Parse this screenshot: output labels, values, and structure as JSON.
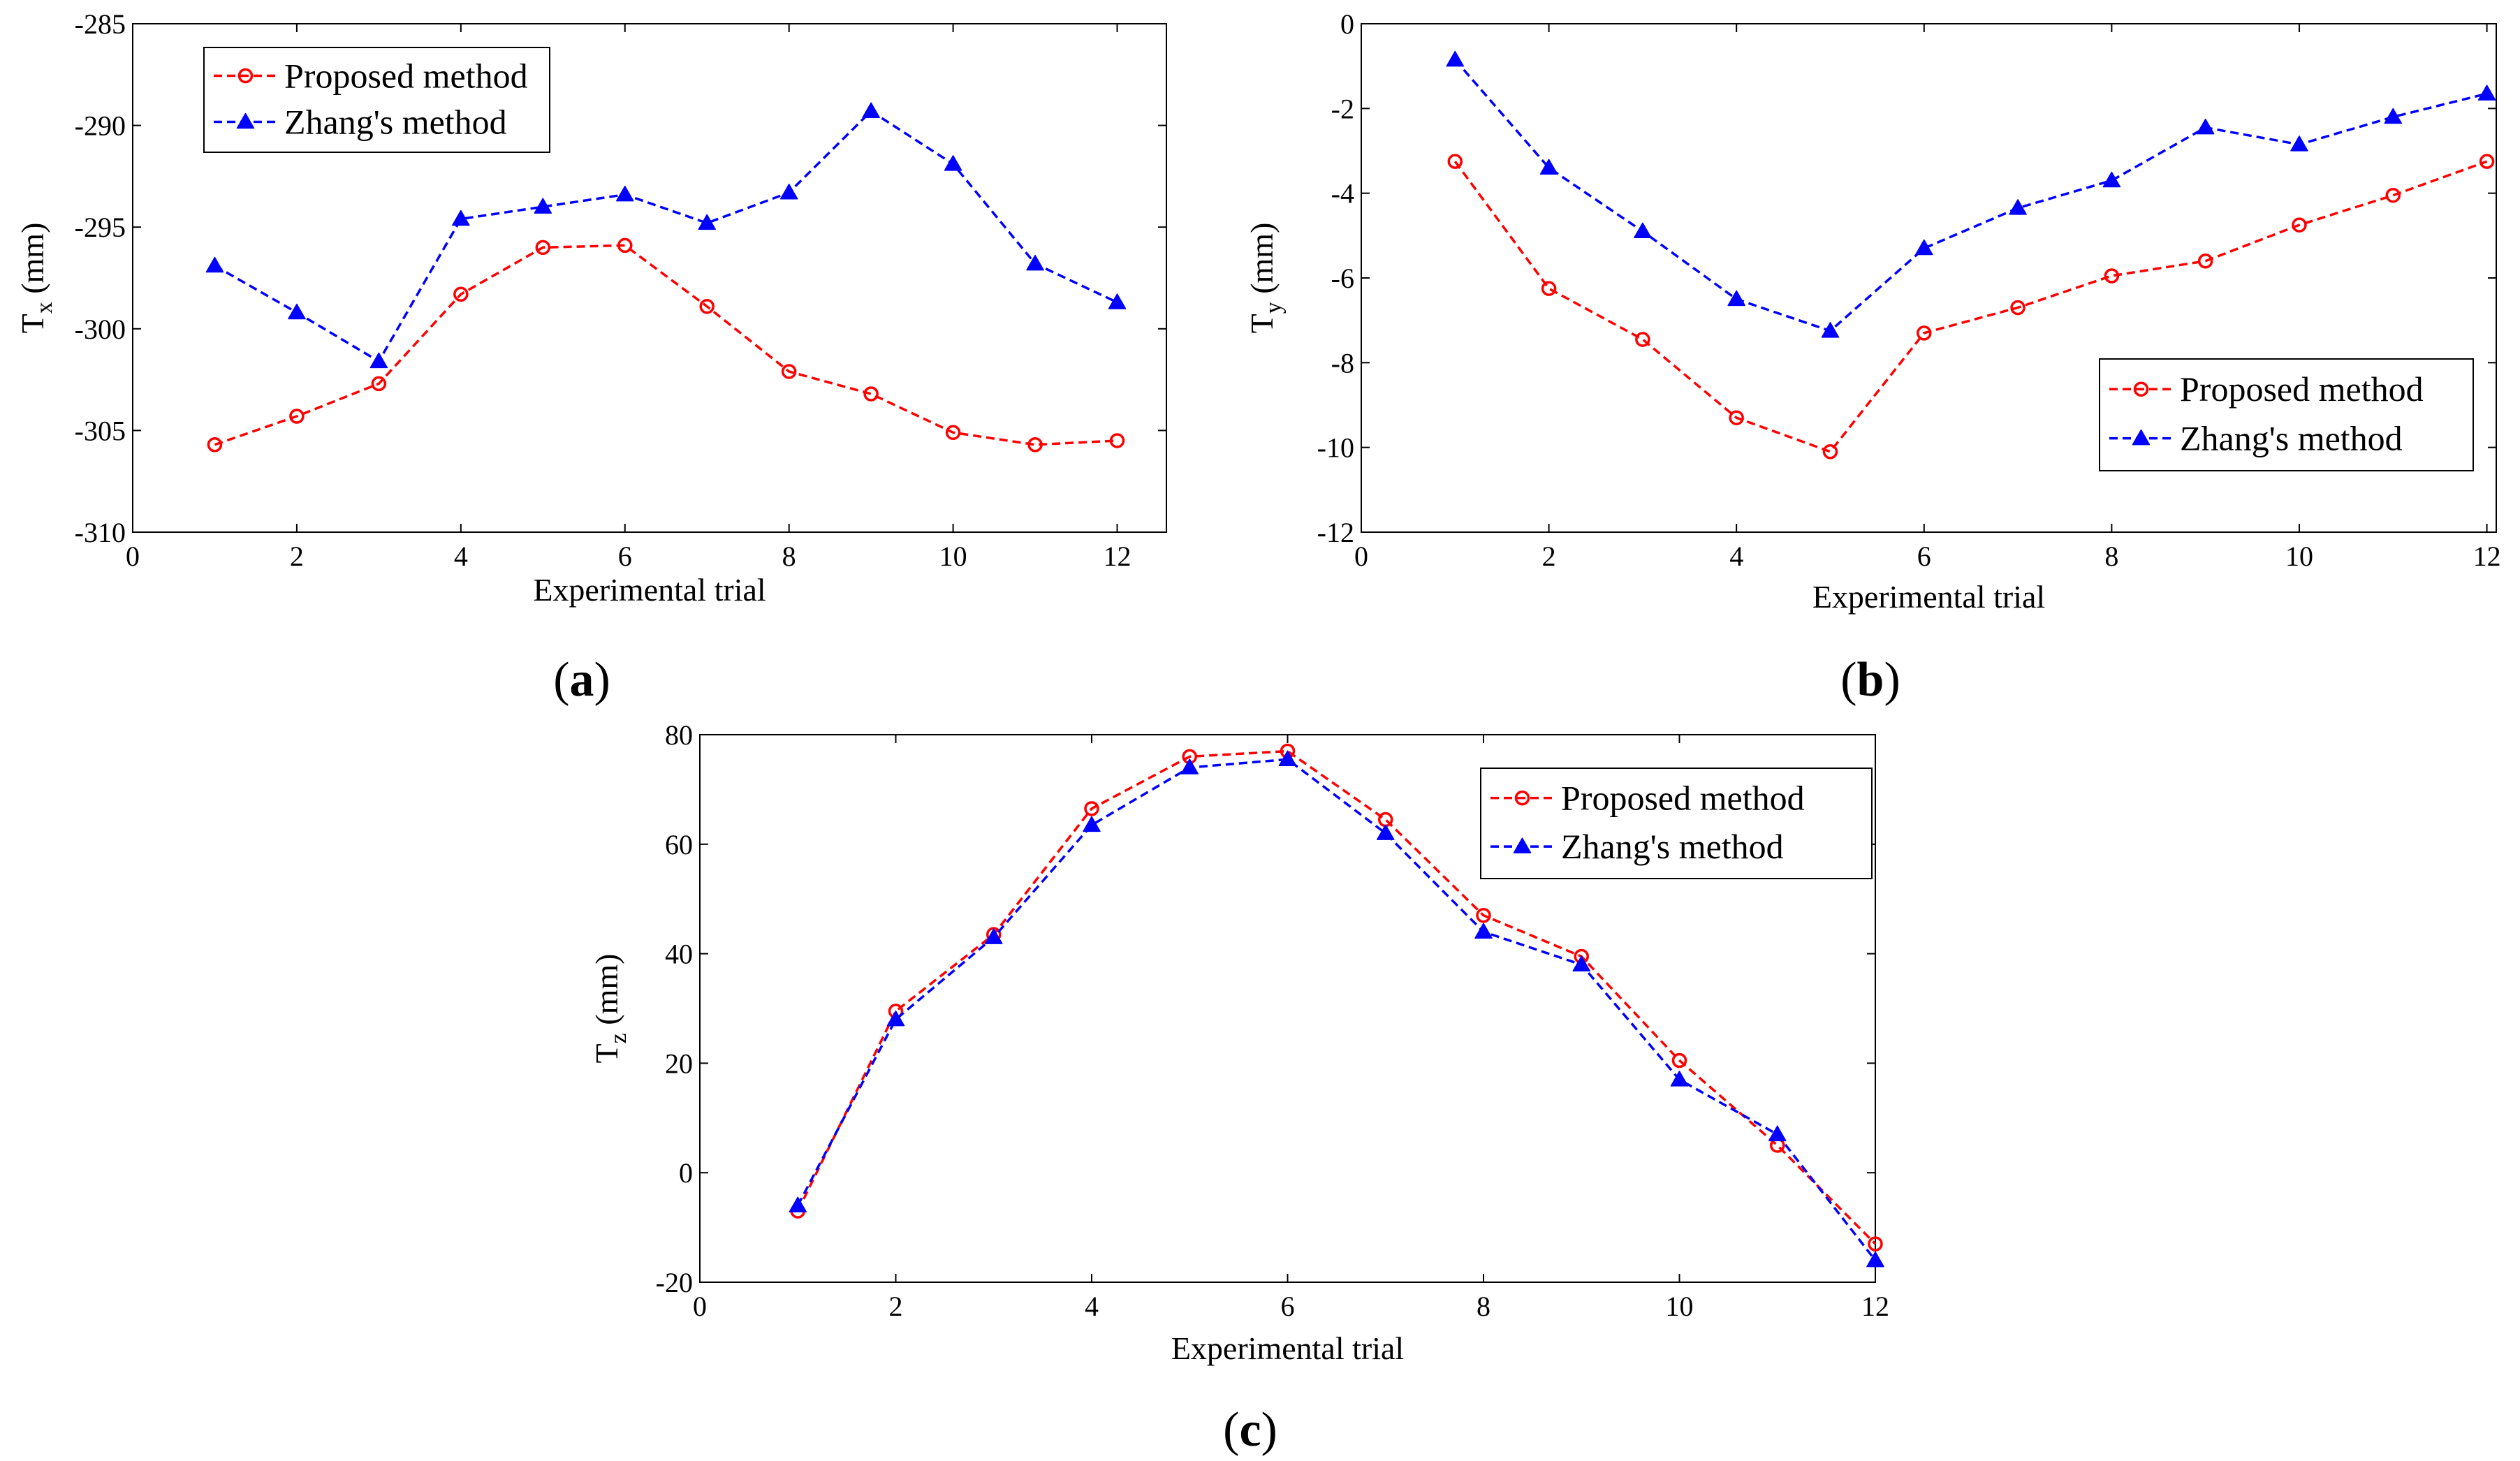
{
  "figure": {
    "panels": [
      "a",
      "b",
      "c"
    ]
  },
  "chart_data": [
    {
      "panel": "a",
      "type": "line",
      "caption_open": "(",
      "caption_letter": "a",
      "caption_close": ")",
      "xlabel": "Experimental trial",
      "ylabel_main": "T",
      "ylabel_sub": "x",
      "ylabel_unit": " (mm)",
      "xlim": [
        0,
        12.6
      ],
      "ylim": [
        -310,
        -285
      ],
      "xticks": [
        0,
        2,
        4,
        6,
        8,
        10,
        12
      ],
      "yticks": [
        -310,
        -305,
        -300,
        -295,
        -290,
        -285
      ],
      "x": [
        1,
        2,
        3,
        4,
        5,
        6,
        7,
        8,
        9,
        10,
        11,
        12
      ],
      "legend_position": "top-left",
      "series": [
        {
          "name": "Proposed method",
          "color": "#ff0000",
          "marker": "circle",
          "values": [
            -305.7,
            -304.3,
            -302.7,
            -298.3,
            -296.0,
            -295.9,
            -298.9,
            -302.1,
            -303.2,
            -305.1,
            -305.7,
            -305.5
          ]
        },
        {
          "name": "Zhang's method",
          "color": "#0000ff",
          "marker": "triangle",
          "values": [
            -296.9,
            -299.2,
            -301.6,
            -294.6,
            -294.0,
            -293.4,
            -294.8,
            -293.3,
            -289.3,
            -291.9,
            -296.8,
            -298.7
          ]
        }
      ]
    },
    {
      "panel": "b",
      "type": "line",
      "caption_open": "(",
      "caption_letter": "b",
      "caption_close": ")",
      "xlabel": "Experimental trial",
      "ylabel_main": "T",
      "ylabel_sub": "y",
      "ylabel_unit": " (mm)",
      "xlim": [
        0,
        12.1
      ],
      "ylim": [
        -12,
        0
      ],
      "xticks": [
        0,
        2,
        4,
        6,
        8,
        10,
        12
      ],
      "yticks": [
        -12,
        -10,
        -8,
        -6,
        -4,
        -2,
        0
      ],
      "x": [
        1,
        2,
        3,
        4,
        5,
        6,
        7,
        8,
        9,
        10,
        11,
        12
      ],
      "legend_position": "bottom-right",
      "series": [
        {
          "name": "Proposed method",
          "color": "#ff0000",
          "marker": "circle",
          "values": [
            -3.25,
            -6.25,
            -7.45,
            -9.3,
            -10.1,
            -7.3,
            -6.7,
            -5.95,
            -5.6,
            -4.75,
            -4.05,
            -3.25
          ]
        },
        {
          "name": "Zhang's method",
          "color": "#0000ff",
          "marker": "triangle",
          "values": [
            -0.85,
            -3.4,
            -4.9,
            -6.5,
            -7.25,
            -5.3,
            -4.35,
            -3.7,
            -2.45,
            -2.85,
            -2.2,
            -1.65
          ]
        }
      ]
    },
    {
      "panel": "c",
      "type": "line",
      "caption_open": "(",
      "caption_letter": "c",
      "caption_close": ")",
      "xlabel": "Experimental trial",
      "ylabel_main": "T",
      "ylabel_sub": "z",
      "ylabel_unit": " (mm)",
      "xlim": [
        0,
        12
      ],
      "ylim": [
        -20,
        80
      ],
      "xticks": [
        0,
        2,
        4,
        6,
        8,
        10,
        12
      ],
      "yticks": [
        -20,
        0,
        20,
        40,
        60,
        80
      ],
      "x": [
        1,
        2,
        3,
        4,
        5,
        6,
        7,
        8,
        9,
        10,
        11,
        12
      ],
      "legend_position": "top-right",
      "series": [
        {
          "name": "Proposed method",
          "color": "#ff0000",
          "marker": "circle",
          "values": [
            -7,
            29.5,
            43.5,
            66.5,
            76,
            77,
            64.5,
            47,
            39.5,
            20.5,
            5,
            -13
          ]
        },
        {
          "name": "Zhang's method",
          "color": "#0000ff",
          "marker": "triangle",
          "values": [
            -6,
            28,
            43,
            63.5,
            74,
            75.5,
            62,
            44,
            38,
            17,
            7,
            -16
          ]
        }
      ]
    }
  ]
}
